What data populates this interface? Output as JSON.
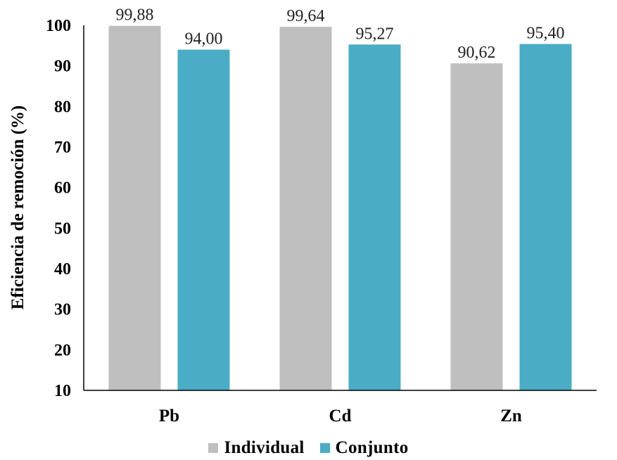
{
  "chart_data": {
    "type": "bar",
    "title": "",
    "xlabel": "",
    "ylabel": "Eficiencia de remoción (%)",
    "ylim": [
      10,
      100
    ],
    "yticks": [
      "10",
      "20",
      "30",
      "40",
      "50",
      "60",
      "70",
      "80",
      "90",
      "100"
    ],
    "categories": [
      "Pb",
      "Cd",
      "Zn"
    ],
    "series": [
      {
        "name": "Individual",
        "color": "#bfbfbf",
        "values": [
          99.88,
          99.64,
          90.62
        ],
        "labels": [
          "99,88",
          "99,64",
          "90,62"
        ]
      },
      {
        "name": "Conjunto",
        "color": "#4bacc6",
        "values": [
          94.0,
          95.27,
          95.4
        ],
        "labels": [
          "94,00",
          "95,27",
          "95,40"
        ]
      }
    ],
    "grid": false,
    "legend": "bottom"
  }
}
